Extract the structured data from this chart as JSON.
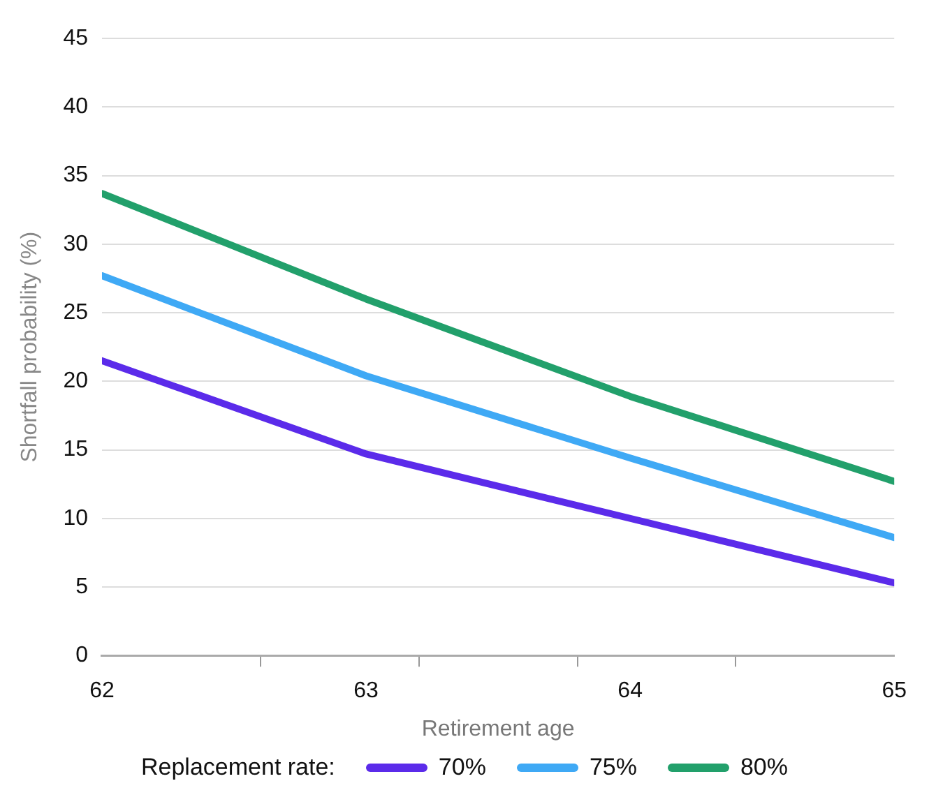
{
  "chart_data": {
    "type": "line",
    "xlabel": "Retirement age",
    "ylabel": "Shortfall probability (%)",
    "legend_title": "Replacement rate:",
    "x": [
      62,
      63,
      64,
      65
    ],
    "series": [
      {
        "name": "70%",
        "color": "#5b2bea",
        "values": [
          21.5,
          14.7,
          10.0,
          5.3
        ]
      },
      {
        "name": "75%",
        "color": "#3fa9f5",
        "values": [
          27.7,
          20.4,
          14.4,
          8.6
        ]
      },
      {
        "name": "80%",
        "color": "#22a06b",
        "values": [
          33.7,
          26.0,
          18.9,
          12.7
        ]
      }
    ],
    "xlim": [
      62,
      65
    ],
    "xticks": [
      62,
      {
        "value": 62.6,
        "label": null
      },
      63,
      {
        "value": 63.2,
        "label": null
      },
      {
        "value": 63.8,
        "label": null
      },
      64,
      {
        "value": 64.4,
        "label": null
      },
      65
    ],
    "ylim": [
      0,
      45
    ],
    "yticks": [
      0,
      5,
      10,
      15,
      20,
      25,
      30,
      35,
      40,
      45
    ],
    "grid": "y",
    "legend": "bottom",
    "marker": "none",
    "line_style": "solid"
  }
}
